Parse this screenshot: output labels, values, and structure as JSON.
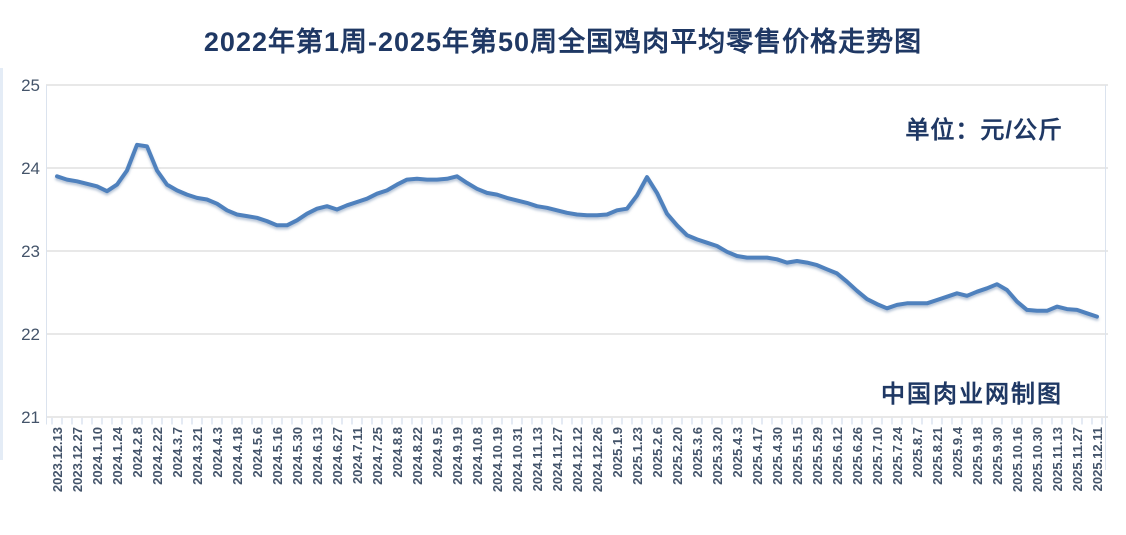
{
  "header": {
    "title": "2022年第1周-2025年第50周全国鸡肉平均零售价格走势图"
  },
  "annotations": {
    "unit_label": "单位：元/公斤",
    "credit_label": "中国肉业网制图"
  },
  "colors": {
    "title_text": "#1f3864",
    "axis_text": "#44546a",
    "line": "#4f81bd",
    "line_shadow": "#7a93b5",
    "gridline": "#d9d9d9",
    "tick": "#c8d6ea",
    "plot_border": "#dbe3ee"
  },
  "chart_data": {
    "type": "line",
    "title": "2022年第1周-2025年第50周全国鸡肉平均零售价格走势图",
    "ylabel": "元/公斤",
    "ylim": [
      21,
      25
    ],
    "yticks": [
      25,
      24,
      23,
      22,
      21
    ],
    "grid": true,
    "legend_position": "none",
    "x_label_every_n_points": 2,
    "x_tick_labels": [
      "2023.12.13",
      "2023.12.27",
      "2024.1.10",
      "2024.1.24",
      "2024.2.8",
      "2024.2.22",
      "2024.3.7",
      "2024.3.21",
      "2024.4.3",
      "2024.4.18",
      "2024.5.6",
      "2024.5.16",
      "2024.5.30",
      "2024.6.13",
      "2024.6.27",
      "2024.7.11",
      "2024.7.25",
      "2024.8.8",
      "2024.8.22",
      "2024.9.5",
      "2024.9.19",
      "2024.10.8",
      "2024.10.19",
      "2024.10.31",
      "2024.11.13",
      "2024.11.27",
      "2024.12.12",
      "2024.12.26",
      "2025.1.9",
      "2025.1.23",
      "2025.2.6",
      "2025.2.20",
      "2025.3.6",
      "2025.3.20",
      "2025.4.3",
      "2025.4.17",
      "2025.4.30",
      "2025.5.15",
      "2025.5.29",
      "2025.6.12",
      "2025.6.26",
      "2025.7.10",
      "2025.7.24",
      "2025.8.7",
      "2025.8.21",
      "2025.9.4",
      "2025.9.18",
      "2025.9.30",
      "2025.10.16",
      "2025.10.30",
      "2025.11.13",
      "2025.11.27",
      "2025.12.11"
    ],
    "series": [
      {
        "name": "全国鸡肉平均零售价格",
        "values": [
          23.9,
          23.86,
          23.84,
          23.81,
          23.78,
          23.72,
          23.8,
          23.97,
          24.28,
          24.26,
          23.97,
          23.8,
          23.73,
          23.68,
          23.64,
          23.62,
          23.57,
          23.49,
          23.44,
          23.42,
          23.4,
          23.36,
          23.31,
          23.31,
          23.37,
          23.45,
          23.51,
          23.54,
          23.5,
          23.55,
          23.59,
          23.63,
          23.69,
          23.73,
          23.8,
          23.86,
          23.87,
          23.86,
          23.86,
          23.87,
          23.9,
          23.82,
          23.75,
          23.7,
          23.68,
          23.64,
          23.61,
          23.58,
          23.54,
          23.52,
          23.49,
          23.46,
          23.44,
          23.43,
          23.43,
          23.44,
          23.49,
          23.51,
          23.67,
          23.89,
          23.7,
          23.45,
          23.31,
          23.19,
          23.14,
          23.1,
          23.06,
          22.99,
          22.94,
          22.92,
          22.92,
          22.92,
          22.9,
          22.86,
          22.88,
          22.86,
          22.83,
          22.78,
          22.73,
          22.63,
          22.52,
          22.42,
          22.36,
          22.31,
          22.35,
          22.37,
          22.37,
          22.37,
          22.41,
          22.45,
          22.49,
          22.46,
          22.51,
          22.55,
          22.6,
          22.53,
          22.39,
          22.29,
          22.28,
          22.28,
          22.33,
          22.3,
          22.29,
          22.25,
          22.21
        ]
      }
    ]
  }
}
